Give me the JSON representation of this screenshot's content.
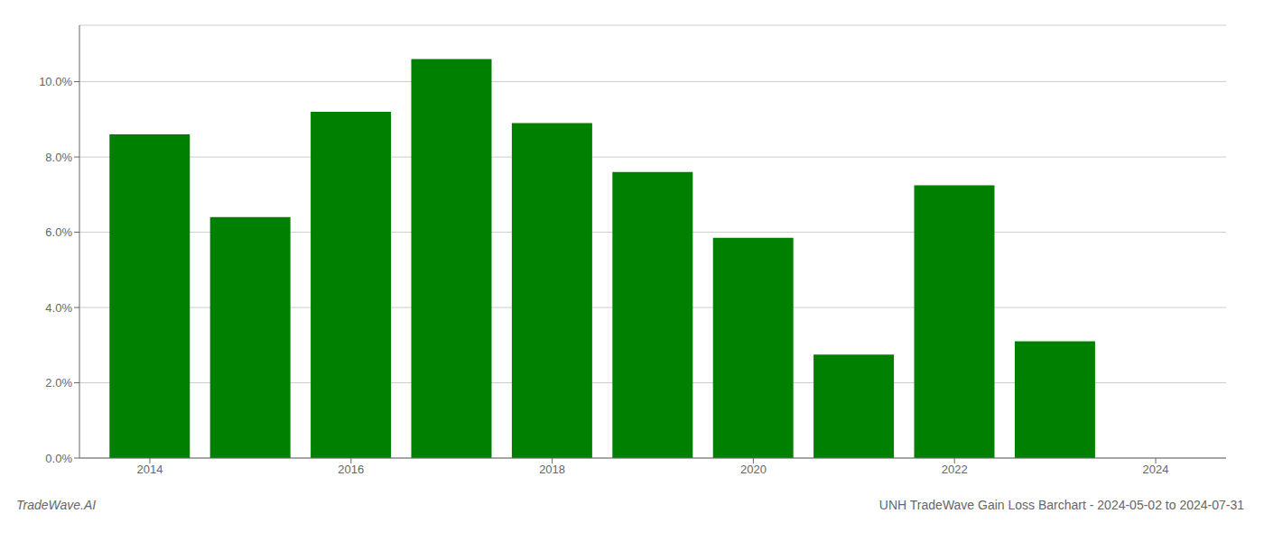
{
  "chart_data": {
    "type": "bar",
    "x": [
      2014,
      2015,
      2016,
      2017,
      2018,
      2019,
      2020,
      2021,
      2022,
      2023
    ],
    "values": [
      0.086,
      0.064,
      0.092,
      0.106,
      0.089,
      0.076,
      0.0585,
      0.0275,
      0.0725,
      0.031
    ],
    "color": "#008000",
    "xlim": [
      2013.3,
      2024.7
    ],
    "xticks": [
      2014,
      2016,
      2018,
      2020,
      2022,
      2024
    ],
    "ylim": [
      0.0,
      0.115
    ],
    "yticks": [
      {
        "value": 0.0,
        "label": "0.0%"
      },
      {
        "value": 0.02,
        "label": "2.0%"
      },
      {
        "value": 0.04,
        "label": "4.0%"
      },
      {
        "value": 0.06,
        "label": "6.0%"
      },
      {
        "value": 0.08,
        "label": "8.0%"
      },
      {
        "value": 0.1,
        "label": "10.0%"
      }
    ],
    "grid": true,
    "annotations": [
      "TradeWave.AI",
      "UNH TradeWave Gain Loss Barchart - 2024-05-02 to 2024-07-31"
    ]
  }
}
